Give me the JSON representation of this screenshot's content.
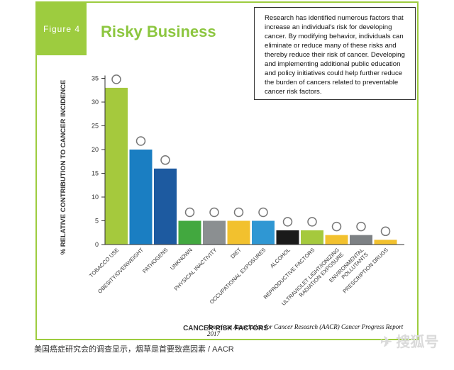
{
  "figure": {
    "label": "Figure 4",
    "title": "Risky Business"
  },
  "description": "Research has identified numerous factors that increase an individual's risk for developing cancer. By modifying behavior, individuals can eliminate or reduce many of these risks and thereby reduce their risk of cancer. Developing and implementing additional public education and policy initiatives could help further reduce the burden of cancers related to preventable cancer risk factors.",
  "source": "American Association for Cancer Research (AACR) Cancer Progress Report 2017",
  "caption": "美国癌症研究会的调查显示，烟草是首要致癌因素 / AACR",
  "watermark": "✈ 搜狐号",
  "chart_data": {
    "type": "bar",
    "xlabel": "CANCER RISK FACTORS",
    "ylabel": "% RELATIVE CONTRIBUTION TO CANCER INCIDENCE",
    "ylim": [
      0,
      35
    ],
    "yticks": [
      0,
      5,
      10,
      15,
      20,
      25,
      30,
      35
    ],
    "grid": false,
    "categories": [
      [
        "TOBACCO USE"
      ],
      [
        "OBESITY/OVERWEIGHT"
      ],
      [
        "PATHOGENS"
      ],
      [
        "UNKNOWN"
      ],
      [
        "PHYSICAL INACTIVITY"
      ],
      [
        "DIET"
      ],
      [
        "OCCUPATIONAL EXPOSURES"
      ],
      [
        "ALCOHOL"
      ],
      [
        "REPRODUCTIVE FACTORS"
      ],
      [
        "ULTRAVIOLET LIGHT/IONIZING",
        "RADIATION EXPOSURE"
      ],
      [
        "ENVIRONMENTAL",
        "POLLUTANTS"
      ],
      [
        "PRESCRIPTION DRUGS"
      ]
    ],
    "values": [
      33,
      20,
      16,
      5,
      5,
      5,
      5,
      3,
      3,
      2,
      2,
      1
    ],
    "colors": [
      "#a5c93d",
      "#1a7ec2",
      "#1d5aa0",
      "#42a83f",
      "#8b8f91",
      "#f2c12e",
      "#2f97d3",
      "#1a1a1a",
      "#a5c93d",
      "#f2c12e",
      "#7d8184",
      "#f2c12e"
    ],
    "icons": [
      "cigarette-icon",
      "scale-icon",
      "virus-icon",
      "question-mark-icon",
      "couch-icon",
      "burger-icon",
      "hard-hat-icon",
      "bottle-icon",
      "figure-icon",
      "sun-icon",
      "barrel-icon",
      "pill-bottle-icon"
    ]
  }
}
